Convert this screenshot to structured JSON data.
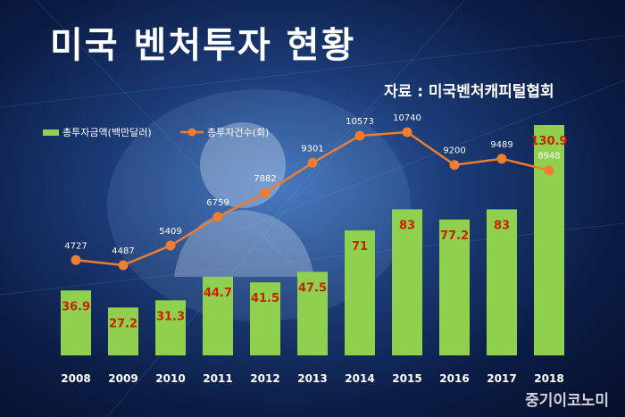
{
  "header": {
    "title": "미국 벤처투자 현황",
    "source": "자료 : 미국벤처캐피털협회"
  },
  "watermark": "중기이코노미",
  "colors": {
    "bar": "#8fd14f",
    "bar_label": "#cc1f00",
    "line": "#ed7d31",
    "line_label": "#ffffff"
  },
  "chart_data": {
    "type": "bar",
    "categories": [
      "2008",
      "2009",
      "2010",
      "2011",
      "2012",
      "2013",
      "2014",
      "2015",
      "2016",
      "2017",
      "2018"
    ],
    "series": [
      {
        "name": "총투자금액(백만달러)",
        "type": "bar",
        "values": [
          36.9,
          27.2,
          31.3,
          44.7,
          41.5,
          47.5,
          71,
          83,
          77.2,
          83,
          130.9
        ],
        "labels": [
          "36.9",
          "27.2",
          "31.3",
          "44.7",
          "41.5",
          "47.5",
          "71",
          "83",
          "77.2",
          "83",
          "130.9"
        ]
      },
      {
        "name": "총투자건수(회)",
        "type": "line",
        "values": [
          4727,
          4487,
          5409,
          6759,
          7882,
          9301,
          10573,
          10740,
          9200,
          9489,
          8948
        ],
        "labels": [
          "4727",
          "4487",
          "5409",
          "6759",
          "7882",
          "9301",
          "10573",
          "10740",
          "9200",
          "9489",
          "8948"
        ]
      }
    ],
    "legend_position": "top-left",
    "grid": false
  }
}
